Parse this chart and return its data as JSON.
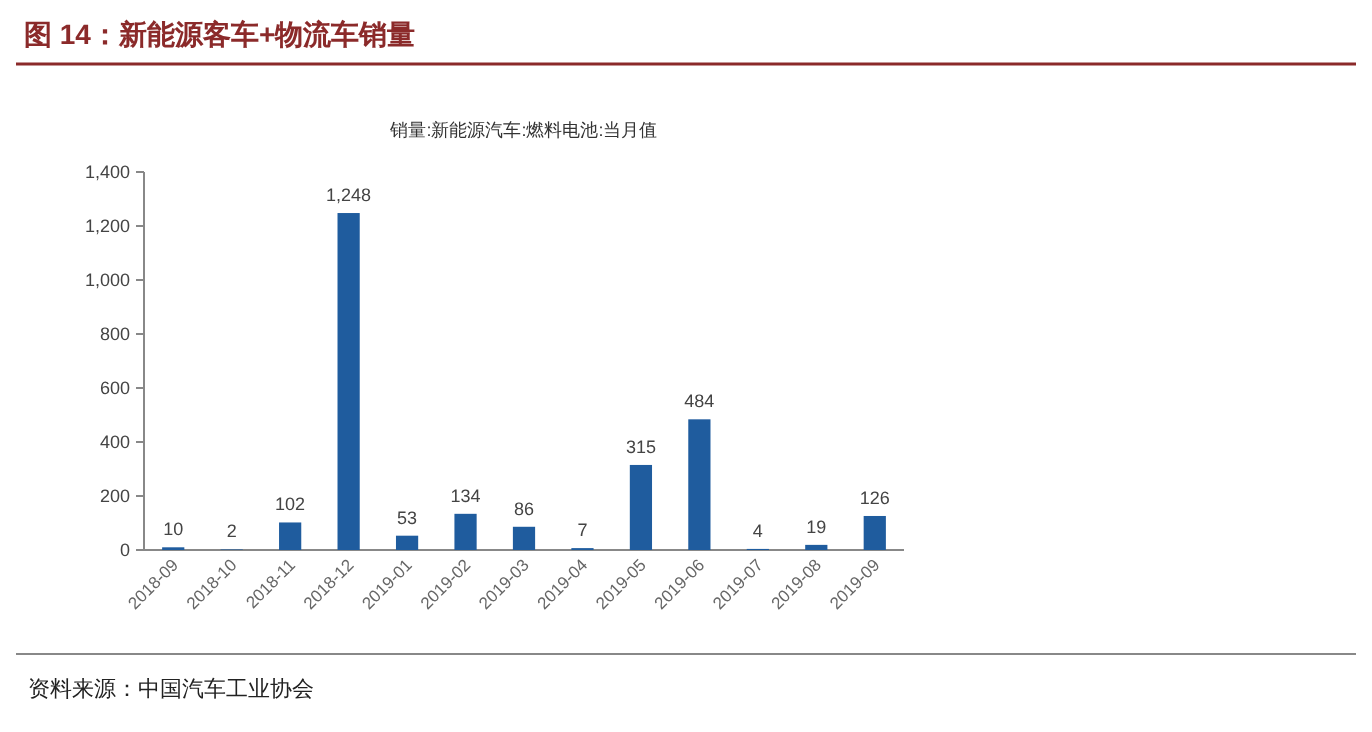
{
  "chart_data": {
    "type": "bar",
    "title": "图 14：新能源客车+物流车销量",
    "subtitle": "销量:新能源汽车:燃料电池:当月值",
    "categories": [
      "2018-09",
      "2018-10",
      "2018-11",
      "2018-12",
      "2019-01",
      "2019-02",
      "2019-03",
      "2019-04",
      "2019-05",
      "2019-06",
      "2019-07",
      "2019-08",
      "2019-09"
    ],
    "values": [
      10,
      2,
      102,
      1248,
      53,
      134,
      86,
      7,
      315,
      484,
      4,
      19,
      126
    ],
    "value_labels": [
      "10",
      "2",
      "102",
      "1,248",
      "53",
      "134",
      "86",
      "7",
      "315",
      "484",
      "4",
      "19",
      "126"
    ],
    "color": "#1f5c9e",
    "grid": false,
    "ylim": [
      0,
      1400
    ],
    "yticks": [
      0,
      200,
      400,
      600,
      800,
      {
        "value": 1000,
        "label": "1,000"
      },
      {
        "value": 1200,
        "label": "1,200"
      },
      {
        "value": 1400,
        "label": "1,400"
      }
    ],
    "annotations": [
      "资料来源：中国汽车工业协会"
    ]
  }
}
